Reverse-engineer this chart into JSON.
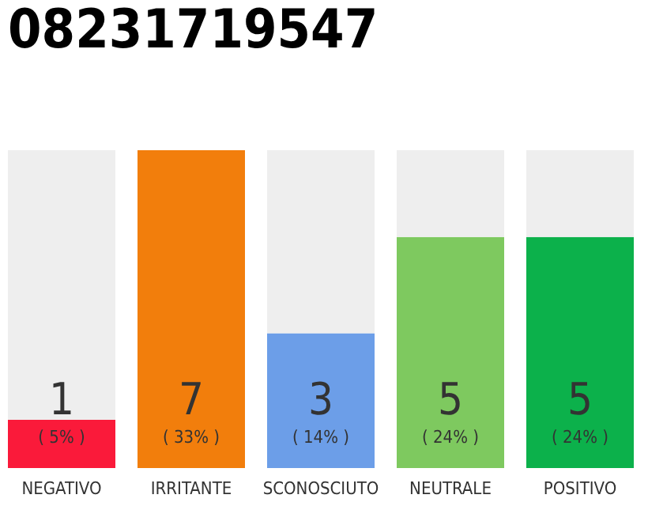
{
  "chart_data": {
    "type": "bar",
    "title": "08231719547",
    "categories": [
      "NEGATIVO",
      "IRRITANTE",
      "SCONOSCIUTO",
      "NEUTRALE",
      "POSITIVO"
    ],
    "stacked": true,
    "ylim": [
      0,
      33
    ],
    "tick_labels": "x",
    "series": [
      {
        "colors": [
          "#fa1a3a",
          "#f27e0c",
          "#6c9ee8",
          "#7ec95f",
          "#0cb14b"
        ],
        "values": [
          5,
          33,
          14,
          24,
          24
        ],
        "value_labels": [
          "( 5% )",
          "( 33% )",
          "( 14% )",
          "( 24% )",
          "( 24% )"
        ]
      },
      {
        "color": "#eeeeee",
        "values": [
          28,
          0,
          19,
          9,
          9
        ]
      }
    ],
    "annotations": [
      "1",
      "7",
      "3",
      "5",
      "5"
    ]
  }
}
